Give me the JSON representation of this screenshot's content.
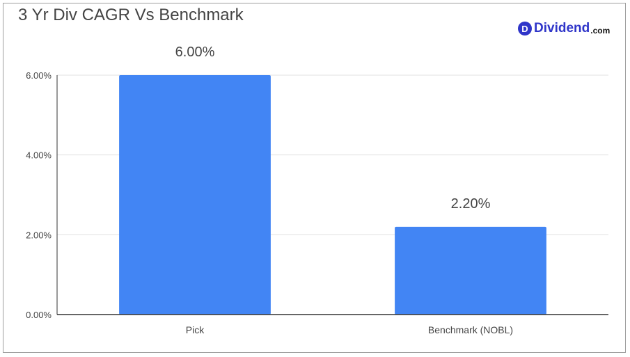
{
  "logo": {
    "mark": "D",
    "word": "Dividend",
    "tld": ".com"
  },
  "colors": {
    "bar": "#4285f4",
    "grid": "#e0e0e0",
    "axis": "#333333",
    "brand": "#2f35c9"
  },
  "chart_data": {
    "type": "bar",
    "title": "3 Yr Div CAGR Vs Benchmark",
    "categories": [
      "Pick",
      "Benchmark (NOBL)"
    ],
    "values": [
      6.0,
      2.2
    ],
    "data_labels": [
      "6.00%",
      "2.20%"
    ],
    "yticks": [
      0,
      2,
      4,
      6
    ],
    "ytick_labels": [
      "0.00%",
      "2.00%",
      "4.00%",
      "6.00%"
    ],
    "ylim": [
      0,
      6
    ],
    "xlabel": "",
    "ylabel": "",
    "grid": true,
    "legend": "none"
  }
}
